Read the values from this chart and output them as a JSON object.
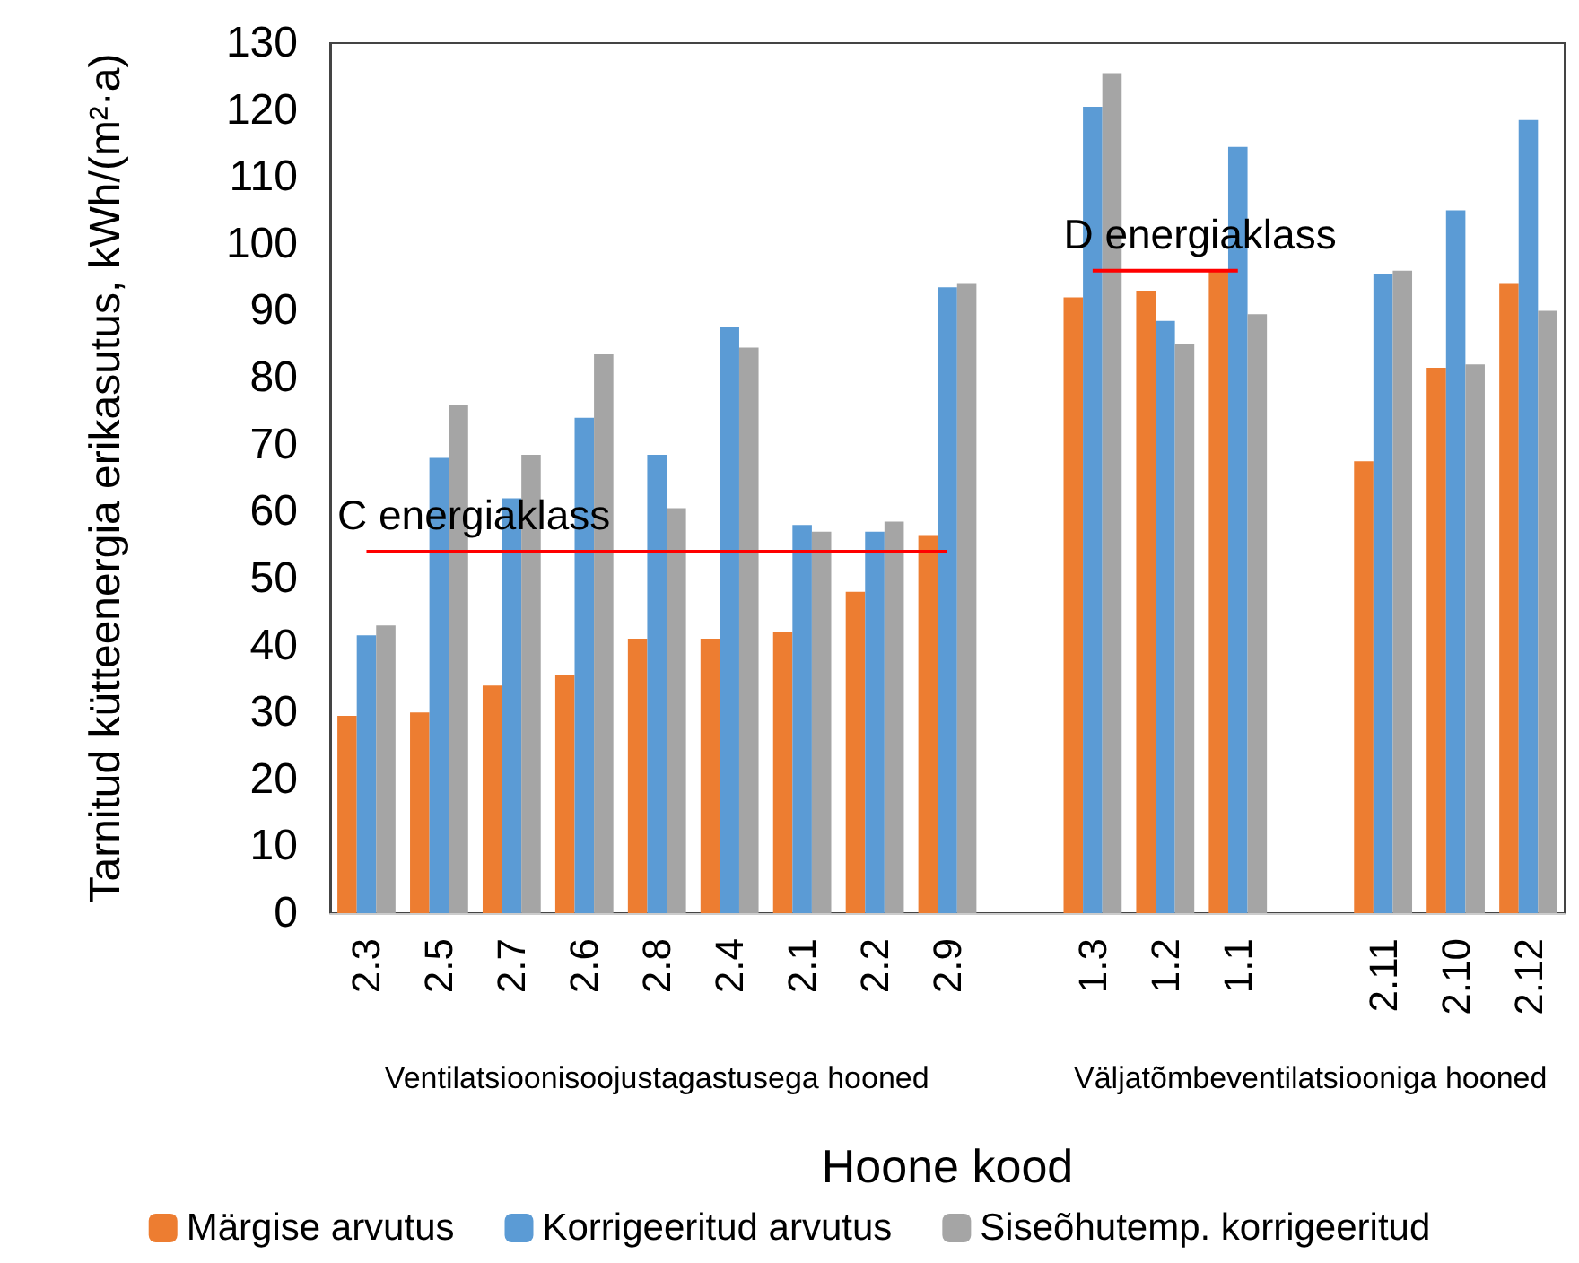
{
  "chart_data": {
    "type": "bar",
    "xlabel": "Hoone kood",
    "ylabel": "Tarnitud kütteenergia erikasutus, kWh/(m²·a)",
    "categories": [
      "2.3",
      "2.5",
      "2.7",
      "2.6",
      "2.8",
      "2.4",
      "2.1",
      "2.2",
      "2.9",
      null,
      "1.3",
      "1.2",
      "1.1",
      null,
      "2.11",
      "2.10",
      "2.12"
    ],
    "series": [
      {
        "name": "Märgise arvutus",
        "color": "#ed7d31",
        "values": [
          29.5,
          30,
          34,
          35.5,
          41,
          41,
          42,
          48,
          56.5,
          null,
          92,
          93,
          96,
          null,
          67.5,
          81.5,
          94
        ]
      },
      {
        "name": "Korrigeeritud arvutus",
        "color": "#5b9bd5",
        "values": [
          41.5,
          68,
          62,
          74,
          68.5,
          87.5,
          58,
          57,
          93.5,
          null,
          120.5,
          88.5,
          114.5,
          null,
          95.5,
          105,
          118.5
        ]
      },
      {
        "name": "Siseõhutemp. korrigeeritud",
        "color": "#a5a5a5",
        "values": [
          43,
          76,
          68.5,
          83.5,
          60.5,
          84.5,
          57,
          58.5,
          94,
          null,
          125.5,
          85,
          89.5,
          null,
          96,
          82,
          90
        ]
      },
      {
        "type": "line",
        "color": "#ff0000",
        "values": [
          54,
          54,
          54,
          54,
          54,
          54,
          54,
          54,
          54,
          null,
          null,
          null,
          null,
          null,
          null,
          null,
          null
        ]
      },
      {
        "type": "line",
        "color": "#ff0000",
        "values": [
          null,
          null,
          null,
          null,
          null,
          null,
          null,
          null,
          null,
          null,
          96,
          96,
          96,
          null,
          null,
          null,
          null
        ]
      }
    ],
    "annotations": [
      {
        "text": "C energiaklass",
        "x": "2.3",
        "y": 54
      },
      {
        "text": "D energiaklass",
        "x": "1.3",
        "y": 96
      },
      "Ventilatsioonisoojustagastusega hooned",
      "Väljatõmbeventilatsiooniga hooned"
    ],
    "ylim": [
      0,
      130
    ],
    "yticks": [
      0,
      10,
      20,
      30,
      40,
      50,
      60,
      70,
      80,
      90,
      100,
      110,
      120,
      130
    ],
    "grid": false,
    "legend": "bottom",
    "marker": "none"
  }
}
